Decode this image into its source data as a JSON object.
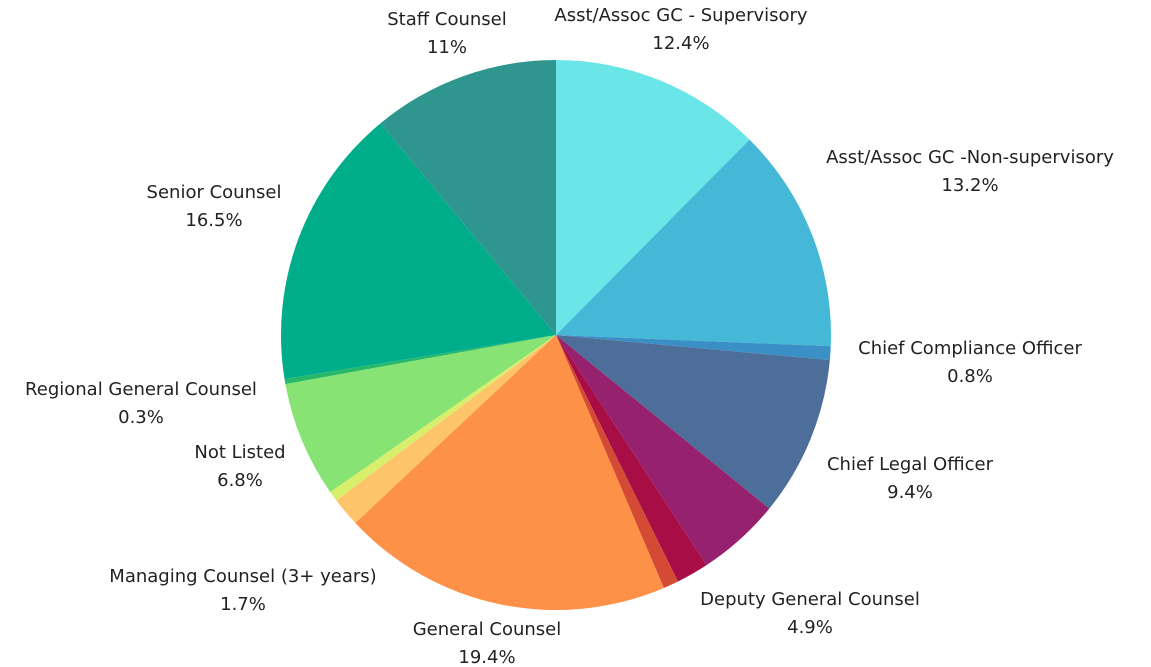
{
  "chart_data": {
    "type": "pie",
    "categories": [
      "Asst/Assoc GC - Supervisory",
      "Asst/Assoc GC -Non-supervisory",
      "Chief Compliance Officer",
      "Chief Legal Officer",
      "Deputy General Counsel",
      null,
      null,
      "General Counsel",
      "Managing Counsel (3+ years)",
      null,
      "Not Listed",
      "Regional General Counsel",
      "Senior Counsel",
      "Staff Counsel"
    ],
    "values": [
      12.4,
      13.2,
      0.8,
      9.4,
      4.9,
      1.9,
      0.9,
      19.4,
      1.7,
      0.6,
      6.8,
      0.3,
      16.5,
      11
    ],
    "value_labels": [
      "12.4%",
      "13.2%",
      "0.8%",
      "9.4%",
      "4.9%",
      null,
      null,
      "19.4%",
      "1.7%",
      null,
      "6.8%",
      "0.3%",
      "16.5%",
      "11%"
    ],
    "colors": [
      "#6ae5e8",
      "#44b8d6",
      "#3a8fc6",
      "#4d6e99",
      "#96216f",
      "#a80d45",
      "#d44a35",
      "#fd9147",
      "#fec46a",
      "#d7ef6b",
      "#86e374",
      "#27b86a",
      "#00ad8a",
      "#2f968f"
    ]
  }
}
